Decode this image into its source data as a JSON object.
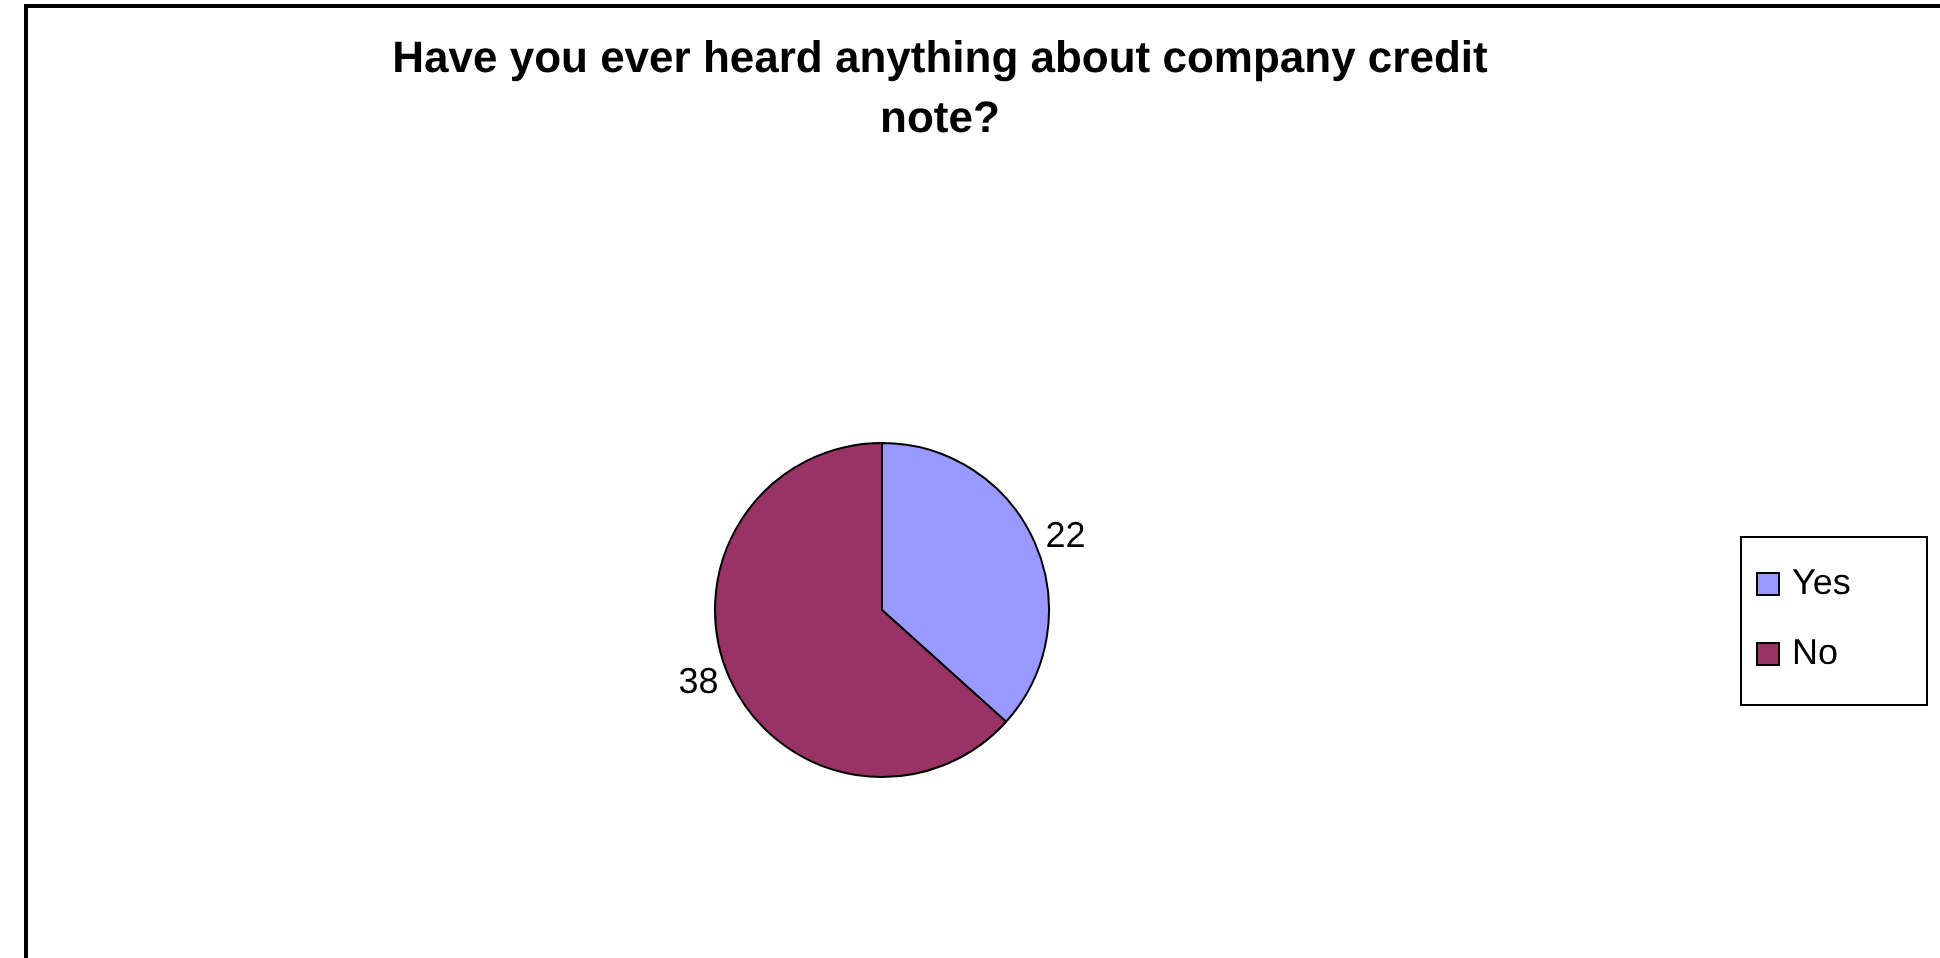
{
  "chart_data": {
    "type": "pie",
    "title": "Have you ever heard anything about company credit note?",
    "categories": [
      "Yes",
      "No"
    ],
    "values": [
      22,
      38
    ],
    "colors": [
      "#9999ff",
      "#993366"
    ],
    "data_labels": true,
    "legend": "right"
  }
}
